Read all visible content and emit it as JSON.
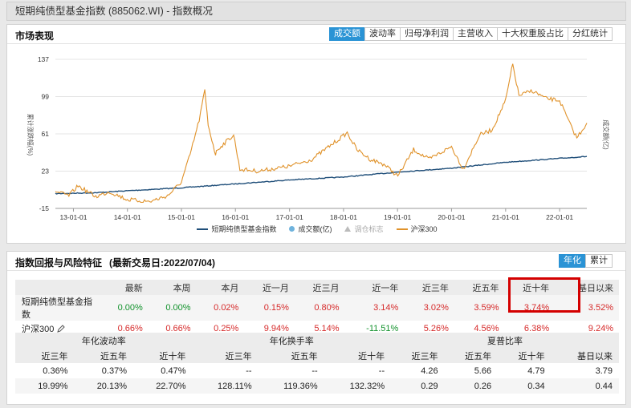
{
  "title": "短期纯债型基金指数 (885062.WI) - 指数概况",
  "market": {
    "title": "市场表现",
    "tabs": [
      "成交额",
      "波动率",
      "归母净利润",
      "主营收入",
      "十大权重股占比",
      "分红统计"
    ],
    "active_tab": 0
  },
  "chart_data": {
    "type": "line",
    "x_ticks": [
      "13-01-01",
      "14-01-01",
      "15-01-01",
      "16-01-01",
      "17-01-01",
      "18-01-01",
      "19-01-01",
      "20-01-01",
      "21-01-01",
      "22-01-01"
    ],
    "y_ticks": [
      -15,
      23,
      61,
      99,
      137
    ],
    "ylim": [
      -15,
      137
    ],
    "ylabel": "累计涨跌幅(%)",
    "ylabel_right": "成交额(亿)",
    "series": [
      {
        "name": "短期纯债型基金指数",
        "color": "#1f4e79",
        "x": [
          "2012-09-01",
          "2013-06-01",
          "2014-01-01",
          "2015-01-01",
          "2016-01-01",
          "2017-01-01",
          "2018-01-01",
          "2019-01-01",
          "2020-01-01",
          "2021-01-01",
          "2022-07-04"
        ],
        "values": [
          0,
          1,
          3,
          6,
          10,
          14,
          17,
          22,
          26,
          32,
          38
        ]
      },
      {
        "name": "沪深300",
        "color": "#e0922a",
        "x": [
          "2012-09-01",
          "2012-12-01",
          "2013-02-01",
          "2013-06-01",
          "2013-09-01",
          "2014-01-01",
          "2014-06-01",
          "2014-10-01",
          "2015-01-01",
          "2015-03-01",
          "2015-05-01",
          "2015-06-08",
          "2015-07-01",
          "2015-08-20",
          "2015-09-01",
          "2015-12-20",
          "2016-01-31",
          "2016-06-01",
          "2017-01-01",
          "2017-06-01",
          "2018-01-26",
          "2018-04-01",
          "2018-07-01",
          "2018-10-01",
          "2019-01-03",
          "2019-04-20",
          "2019-08-01",
          "2020-01-01",
          "2020-03-20",
          "2020-07-10",
          "2020-10-01",
          "2021-01-01",
          "2021-02-18",
          "2021-04-01",
          "2021-07-01",
          "2021-10-01",
          "2022-01-01",
          "2022-03-15",
          "2022-04-27",
          "2022-07-04"
        ],
        "values": [
          2,
          -2,
          8,
          -3,
          2,
          -6,
          -8,
          -2,
          12,
          40,
          75,
          105,
          70,
          40,
          45,
          60,
          25,
          23,
          28,
          35,
          62,
          45,
          35,
          30,
          18,
          45,
          35,
          48,
          25,
          60,
          65,
          95,
          132,
          100,
          105,
          97,
          95,
          70,
          57,
          72
        ]
      }
    ],
    "legend": [
      "短期纯债型基金指数",
      "成交额(亿)",
      "调仓标志",
      "沪深300"
    ],
    "legend_position": "bottom"
  },
  "risk": {
    "title": "指数回报与风险特征",
    "subtitle": "(最新交易日:2022/07/04)",
    "tabs": [
      "年化",
      "累计"
    ],
    "active_tab": 0,
    "returns": {
      "headers": [
        "最新",
        "本周",
        "本月",
        "近一月",
        "近三月",
        "近一年",
        "近三年",
        "近五年",
        "近十年",
        "基日以来"
      ],
      "rows": [
        {
          "name": "短期纯债型基金指数",
          "values": [
            "0.00%",
            "0.00%",
            "0.02%",
            "0.15%",
            "0.80%",
            "3.14%",
            "3.02%",
            "3.59%",
            "3.74%",
            "3.52%"
          ],
          "tones": [
            "g",
            "g",
            "r",
            "r",
            "r",
            "r",
            "r",
            "r",
            "r",
            "r"
          ]
        },
        {
          "name": "沪深300",
          "values": [
            "0.66%",
            "0.66%",
            "0.25%",
            "9.94%",
            "5.14%",
            "-11.51%",
            "5.26%",
            "4.56%",
            "6.38%",
            "9.24%"
          ],
          "tones": [
            "r",
            "r",
            "r",
            "r",
            "r",
            "g",
            "r",
            "r",
            "r",
            "r"
          ]
        }
      ]
    },
    "stats": {
      "groups": [
        "年化波动率",
        "年化换手率",
        "夏普比率"
      ],
      "subheaders": [
        "近三年",
        "近五年",
        "近十年",
        "近三年",
        "近五年",
        "近十年",
        "近三年",
        "近五年",
        "近十年",
        "基日以来"
      ],
      "rows": [
        [
          "0.36%",
          "0.37%",
          "0.47%",
          "--",
          "--",
          "--",
          "4.26",
          "5.66",
          "4.79",
          "3.79"
        ],
        [
          "19.99%",
          "20.13%",
          "22.70%",
          "128.11%",
          "119.36%",
          "132.32%",
          "0.29",
          "0.26",
          "0.34",
          "0.44"
        ]
      ]
    }
  }
}
